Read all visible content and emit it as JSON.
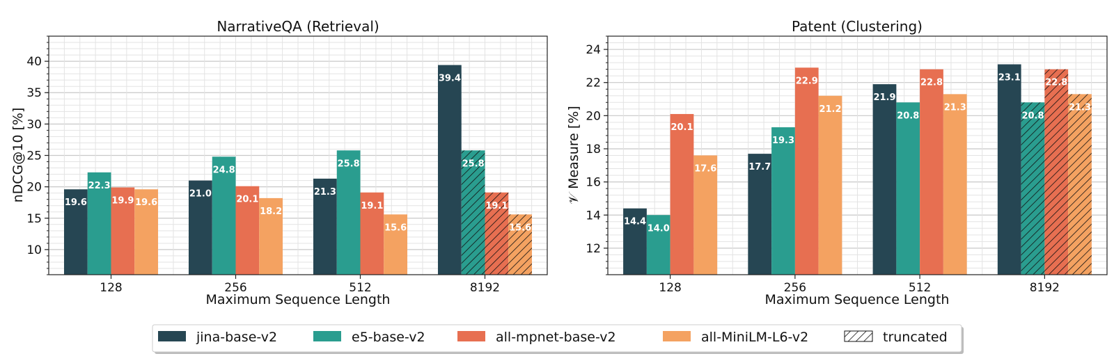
{
  "charts": [
    {
      "type": "bar",
      "title": "NarrativeQA (Retrieval)",
      "xlabel": "Maximum Sequence Length",
      "ylabel": "nDCG@10 [%]",
      "categories": [
        "128",
        "256",
        "512",
        "8192"
      ],
      "ylim": [
        6,
        44
      ],
      "yticks": [
        10,
        15,
        20,
        25,
        30,
        35,
        40
      ],
      "series": [
        {
          "name": "jina-base-v2",
          "values": [
            19.6,
            21.0,
            21.3,
            39.4
          ],
          "truncated": [
            false,
            false,
            false,
            false
          ]
        },
        {
          "name": "e5-base-v2",
          "values": [
            22.3,
            24.8,
            25.8,
            25.8
          ],
          "truncated": [
            false,
            false,
            false,
            true
          ]
        },
        {
          "name": "all-mpnet-base-v2",
          "values": [
            19.9,
            20.1,
            19.1,
            19.1
          ],
          "truncated": [
            false,
            false,
            false,
            true
          ]
        },
        {
          "name": "all-MiniLM-L6-v2",
          "values": [
            19.6,
            18.2,
            15.6,
            15.6
          ],
          "truncated": [
            false,
            false,
            false,
            true
          ]
        }
      ],
      "grid": true
    },
    {
      "type": "bar",
      "title": "Patent (Clustering)",
      "xlabel": "Maximum Sequence Length",
      "ylabel": "𝒱 Measure [%]",
      "categories": [
        "128",
        "256",
        "512",
        "8192"
      ],
      "ylim": [
        10.4,
        24.8
      ],
      "yticks": [
        12,
        14,
        16,
        18,
        20,
        22,
        24
      ],
      "series": [
        {
          "name": "jina-base-v2",
          "values": [
            14.4,
            17.7,
            21.9,
            23.1
          ],
          "truncated": [
            false,
            false,
            false,
            false
          ]
        },
        {
          "name": "e5-base-v2",
          "values": [
            14.0,
            19.3,
            20.8,
            20.8
          ],
          "truncated": [
            false,
            false,
            false,
            true
          ]
        },
        {
          "name": "all-mpnet-base-v2",
          "values": [
            20.1,
            22.9,
            22.8,
            22.8
          ],
          "truncated": [
            false,
            false,
            false,
            true
          ]
        },
        {
          "name": "all-MiniLM-L6-v2",
          "values": [
            17.6,
            21.2,
            21.3,
            21.3
          ],
          "truncated": [
            false,
            false,
            false,
            true
          ]
        }
      ],
      "grid": true
    }
  ],
  "legend": {
    "placement": "bottom-center",
    "entries": [
      {
        "label": "jina-base-v2",
        "color": "#264653"
      },
      {
        "label": "e5-base-v2",
        "color": "#2a9d8f"
      },
      {
        "label": "all-mpnet-base-v2",
        "color": "#e76f51"
      },
      {
        "label": "all-MiniLM-L6-v2",
        "color": "#f4a261"
      },
      {
        "label": "truncated",
        "color": "hatch"
      }
    ]
  },
  "colors": [
    "#264653",
    "#2a9d8f",
    "#e76f51",
    "#f4a261"
  ]
}
